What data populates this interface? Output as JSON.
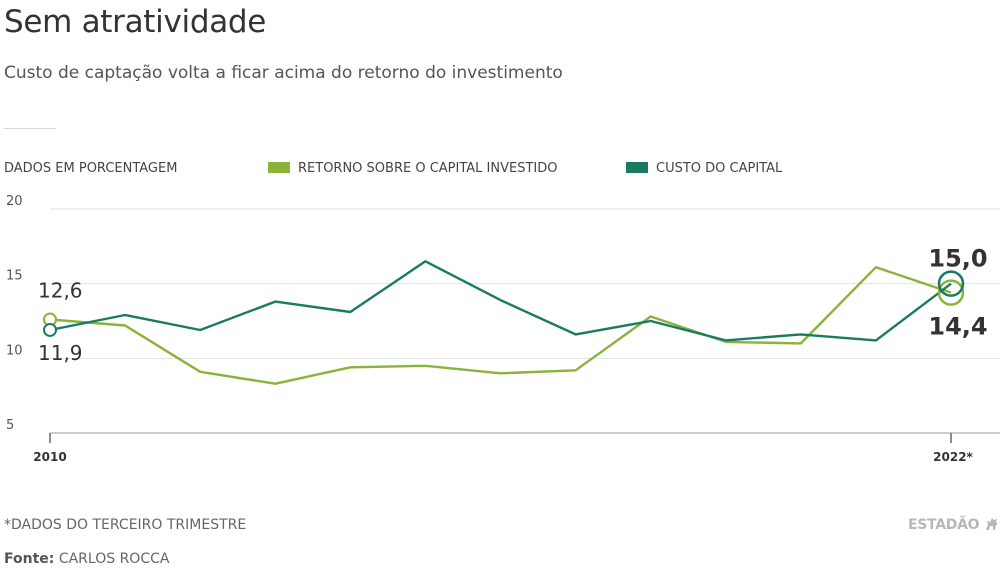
{
  "title": "Sem atratividade",
  "subtitle": "Custo de captação volta a ficar acima do retorno do investimento",
  "units_label": "DADOS EM PORCENTAGEM",
  "footnote": "*DADOS DO TERCEIRO TRIMESTRE",
  "source": {
    "label": "Fonte:",
    "name": "CARLOS ROCCA"
  },
  "logo_text": "ESTADÃO",
  "colors": {
    "roic": "#8bb33a",
    "cost": "#1b7a64",
    "grid": "#e3e3e3",
    "axis": "#999999"
  },
  "chart_data": {
    "type": "line",
    "x_tick_labels": [
      "2010",
      "2022*"
    ],
    "x_range": [
      2010,
      2022
    ],
    "ylim": [
      5,
      20
    ],
    "y_ticks": [
      20,
      15,
      10,
      5
    ],
    "grid": true,
    "legend_placement": "top",
    "series": [
      {
        "name": "RETORNO SOBRE O CAPITAL INVESTIDO",
        "color": "#8bb33a",
        "x": [
          2010,
          2011,
          2012,
          2013,
          2014,
          2015,
          2016,
          2017,
          2018,
          2019,
          2020,
          2021,
          2022
        ],
        "values": [
          12.6,
          12.2,
          9.1,
          8.3,
          9.4,
          9.5,
          9.0,
          9.2,
          12.8,
          11.1,
          11.0,
          16.1,
          14.4
        ]
      },
      {
        "name": "CUSTO DO CAPITAL",
        "color": "#1b7a64",
        "x": [
          2010,
          2011,
          2012,
          2013,
          2014,
          2015,
          2016,
          2017,
          2018,
          2019,
          2020,
          2021,
          2022
        ],
        "values": [
          11.9,
          12.9,
          11.9,
          13.8,
          13.1,
          16.5,
          13.9,
          11.6,
          12.5,
          11.2,
          11.6,
          11.2,
          15.0
        ]
      }
    ],
    "annotations": [
      {
        "series": 0,
        "point": 0,
        "text": "12,6",
        "style": "start"
      },
      {
        "series": 1,
        "point": 0,
        "text": "11,9",
        "style": "start"
      },
      {
        "series": 1,
        "point": 12,
        "text": "15,0",
        "style": "end-bold"
      },
      {
        "series": 0,
        "point": 12,
        "text": "14,4",
        "style": "end-bold"
      }
    ]
  }
}
